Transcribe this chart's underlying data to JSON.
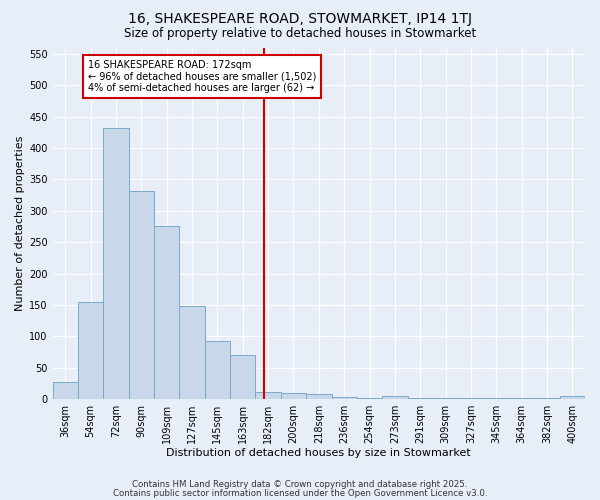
{
  "title1": "16, SHAKESPEARE ROAD, STOWMARKET, IP14 1TJ",
  "title2": "Size of property relative to detached houses in Stowmarket",
  "xlabel": "Distribution of detached houses by size in Stowmarket",
  "ylabel": "Number of detached properties",
  "bar_labels": [
    "36sqm",
    "54sqm",
    "72sqm",
    "90sqm",
    "109sqm",
    "127sqm",
    "145sqm",
    "163sqm",
    "182sqm",
    "200sqm",
    "218sqm",
    "236sqm",
    "254sqm",
    "273sqm",
    "291sqm",
    "309sqm",
    "327sqm",
    "345sqm",
    "364sqm",
    "382sqm",
    "400sqm"
  ],
  "bar_values": [
    28,
    155,
    432,
    332,
    275,
    148,
    92,
    70,
    12,
    10,
    8,
    3,
    2,
    5,
    1,
    1,
    1,
    1,
    1,
    1,
    5
  ],
  "bar_color": "#c8d8ea",
  "bar_edgecolor": "#7aaac8",
  "vline_x": 7.82,
  "vline_color": "#cc0000",
  "ylim": [
    0,
    560
  ],
  "yticks": [
    0,
    50,
    100,
    150,
    200,
    250,
    300,
    350,
    400,
    450,
    500,
    550
  ],
  "background_color": "#e8eef8",
  "grid_color": "#ffffff",
  "annotation_title": "16 SHAKESPEARE ROAD: 172sqm",
  "annotation_line1": "← 96% of detached houses are smaller (1,502)",
  "annotation_line2": "4% of semi-detached houses are larger (62) →",
  "footer1": "Contains HM Land Registry data © Crown copyright and database right 2025.",
  "footer2": "Contains public sector information licensed under the Open Government Licence v3.0.",
  "title1_fontsize": 10,
  "title2_fontsize": 8.5,
  "annotation_fontsize": 7,
  "axis_label_fontsize": 8,
  "tick_fontsize": 7,
  "footer_fontsize": 6.2
}
